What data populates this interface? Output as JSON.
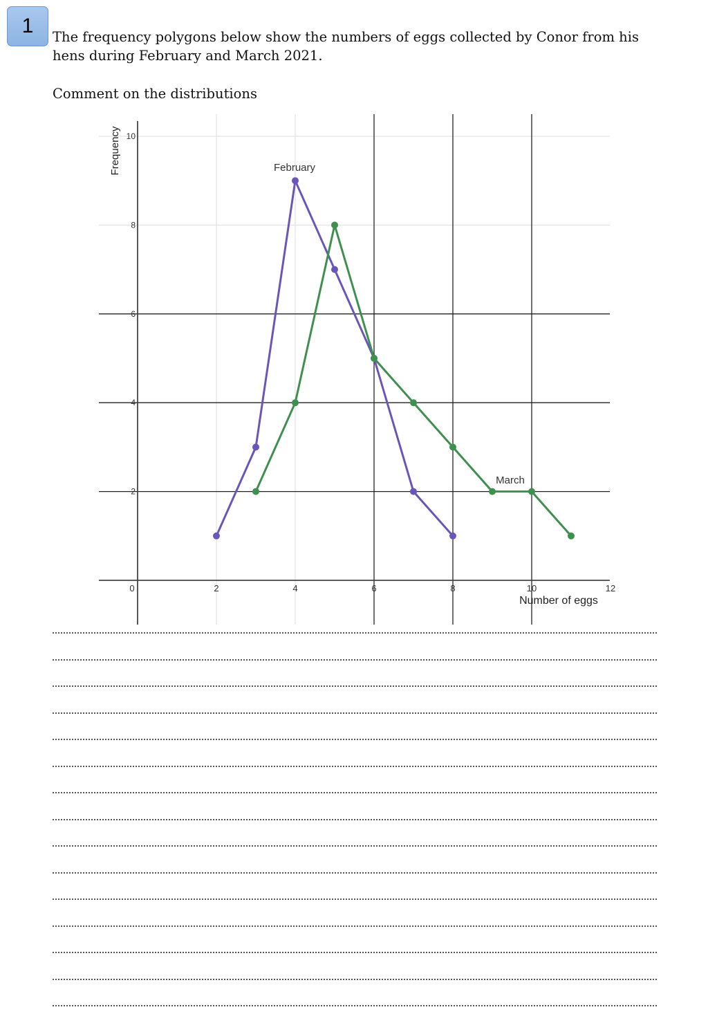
{
  "question": {
    "number": "1",
    "text": "The frequency polygons below show the numbers of eggs collected by Conor from his hens during February and March 2021.",
    "instruction": "Comment on the distributions"
  },
  "chart_data": {
    "type": "line",
    "xlabel": "Number of eggs",
    "ylabel": "Frequency",
    "xlim": [
      0,
      12
    ],
    "ylim": [
      0,
      10
    ],
    "x_ticks": [
      "0",
      "2",
      "4",
      "6",
      "8",
      "10",
      "12"
    ],
    "y_ticks": [
      "2",
      "4",
      "6",
      "8",
      "10"
    ],
    "series": [
      {
        "name": "February",
        "color": "#6a55b8",
        "points": [
          [
            2,
            1
          ],
          [
            3,
            3
          ],
          [
            4,
            9
          ],
          [
            5,
            7
          ],
          [
            6,
            5
          ],
          [
            7,
            2
          ],
          [
            8,
            1
          ]
        ]
      },
      {
        "name": "March",
        "color": "#3f8f4f",
        "points": [
          [
            3,
            2
          ],
          [
            4,
            4
          ],
          [
            5,
            8
          ],
          [
            6,
            5
          ],
          [
            7,
            4
          ],
          [
            8,
            3
          ],
          [
            9,
            2
          ],
          [
            10,
            2
          ],
          [
            11,
            1
          ]
        ]
      }
    ]
  },
  "answer": {
    "line_count": 15
  }
}
